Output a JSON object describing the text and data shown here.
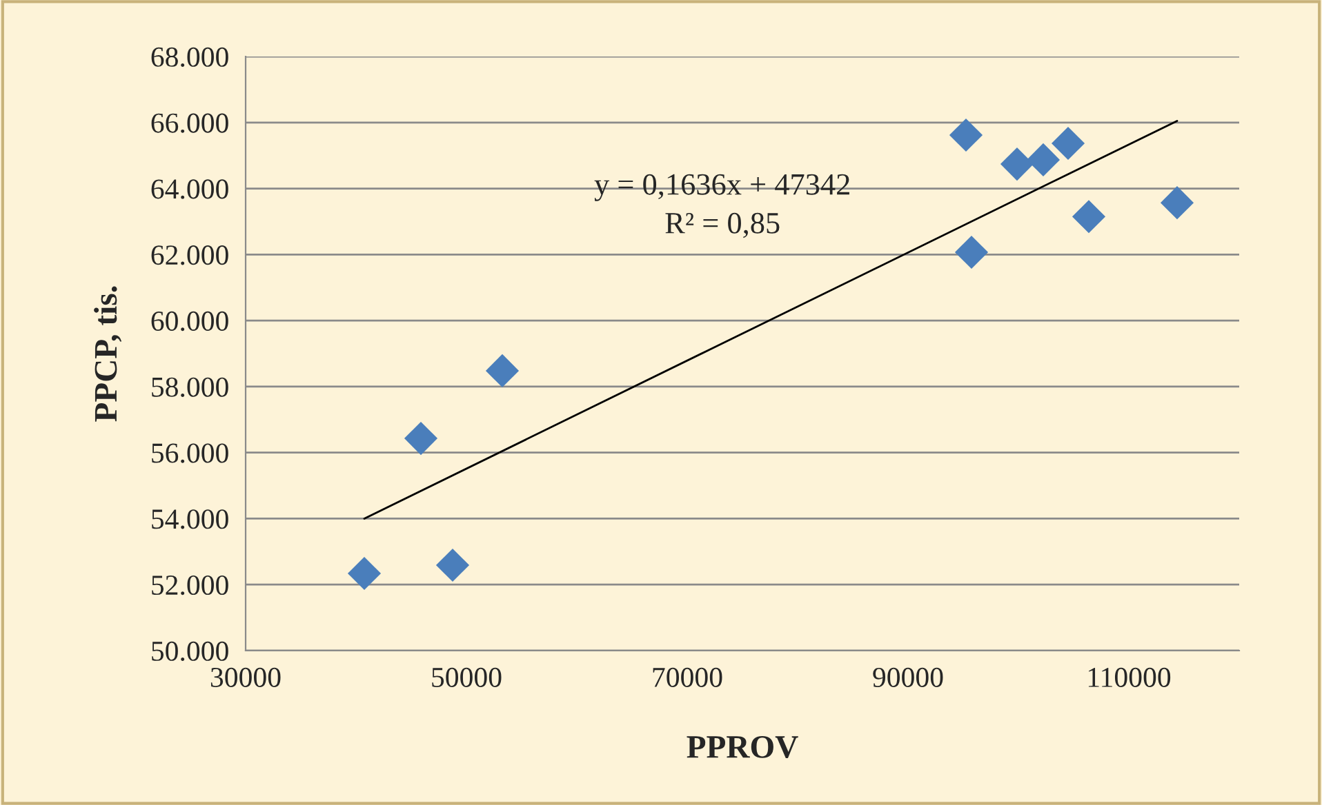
{
  "chart_data": {
    "type": "scatter",
    "xlabel": "PPROV",
    "ylabel": "PPCP, tis.",
    "series": [
      {
        "color": "#4a7ebb",
        "marker": "diamond",
        "x": [
          40750,
          45875,
          48750,
          53250,
          95250,
          95750,
          99875,
          102250,
          104500,
          106375,
          114375
        ],
        "values": [
          52340,
          56430,
          52590,
          58480,
          65620,
          62070,
          64740,
          64870,
          65370,
          63150,
          63570
        ]
      },
      {
        "type": "line",
        "color": "#000000",
        "marker": "none",
        "line_style": "solid",
        "x": [
          40750,
          114375
        ],
        "values": [
          54000,
          66050
        ]
      }
    ],
    "annotations": [
      "y = 0,1636x + 47342",
      "R² = 0,85"
    ],
    "xlim": [
      30000,
      120000
    ],
    "xticks": [
      30000,
      50000,
      70000,
      90000,
      110000
    ],
    "ylim": [
      50000,
      68000
    ],
    "yticks": [
      {
        "value": 50000,
        "label": "50.000"
      },
      {
        "value": 52000,
        "label": "52.000"
      },
      {
        "value": 54000,
        "label": "54.000"
      },
      {
        "value": 56000,
        "label": "56.000"
      },
      {
        "value": 58000,
        "label": "58.000"
      },
      {
        "value": 60000,
        "label": "60.000"
      },
      {
        "value": 62000,
        "label": "62.000"
      },
      {
        "value": 64000,
        "label": "64.000"
      },
      {
        "value": 66000,
        "label": "66.000"
      },
      {
        "value": 68000,
        "label": "68.000"
      }
    ],
    "grid": "y",
    "legend": false
  }
}
